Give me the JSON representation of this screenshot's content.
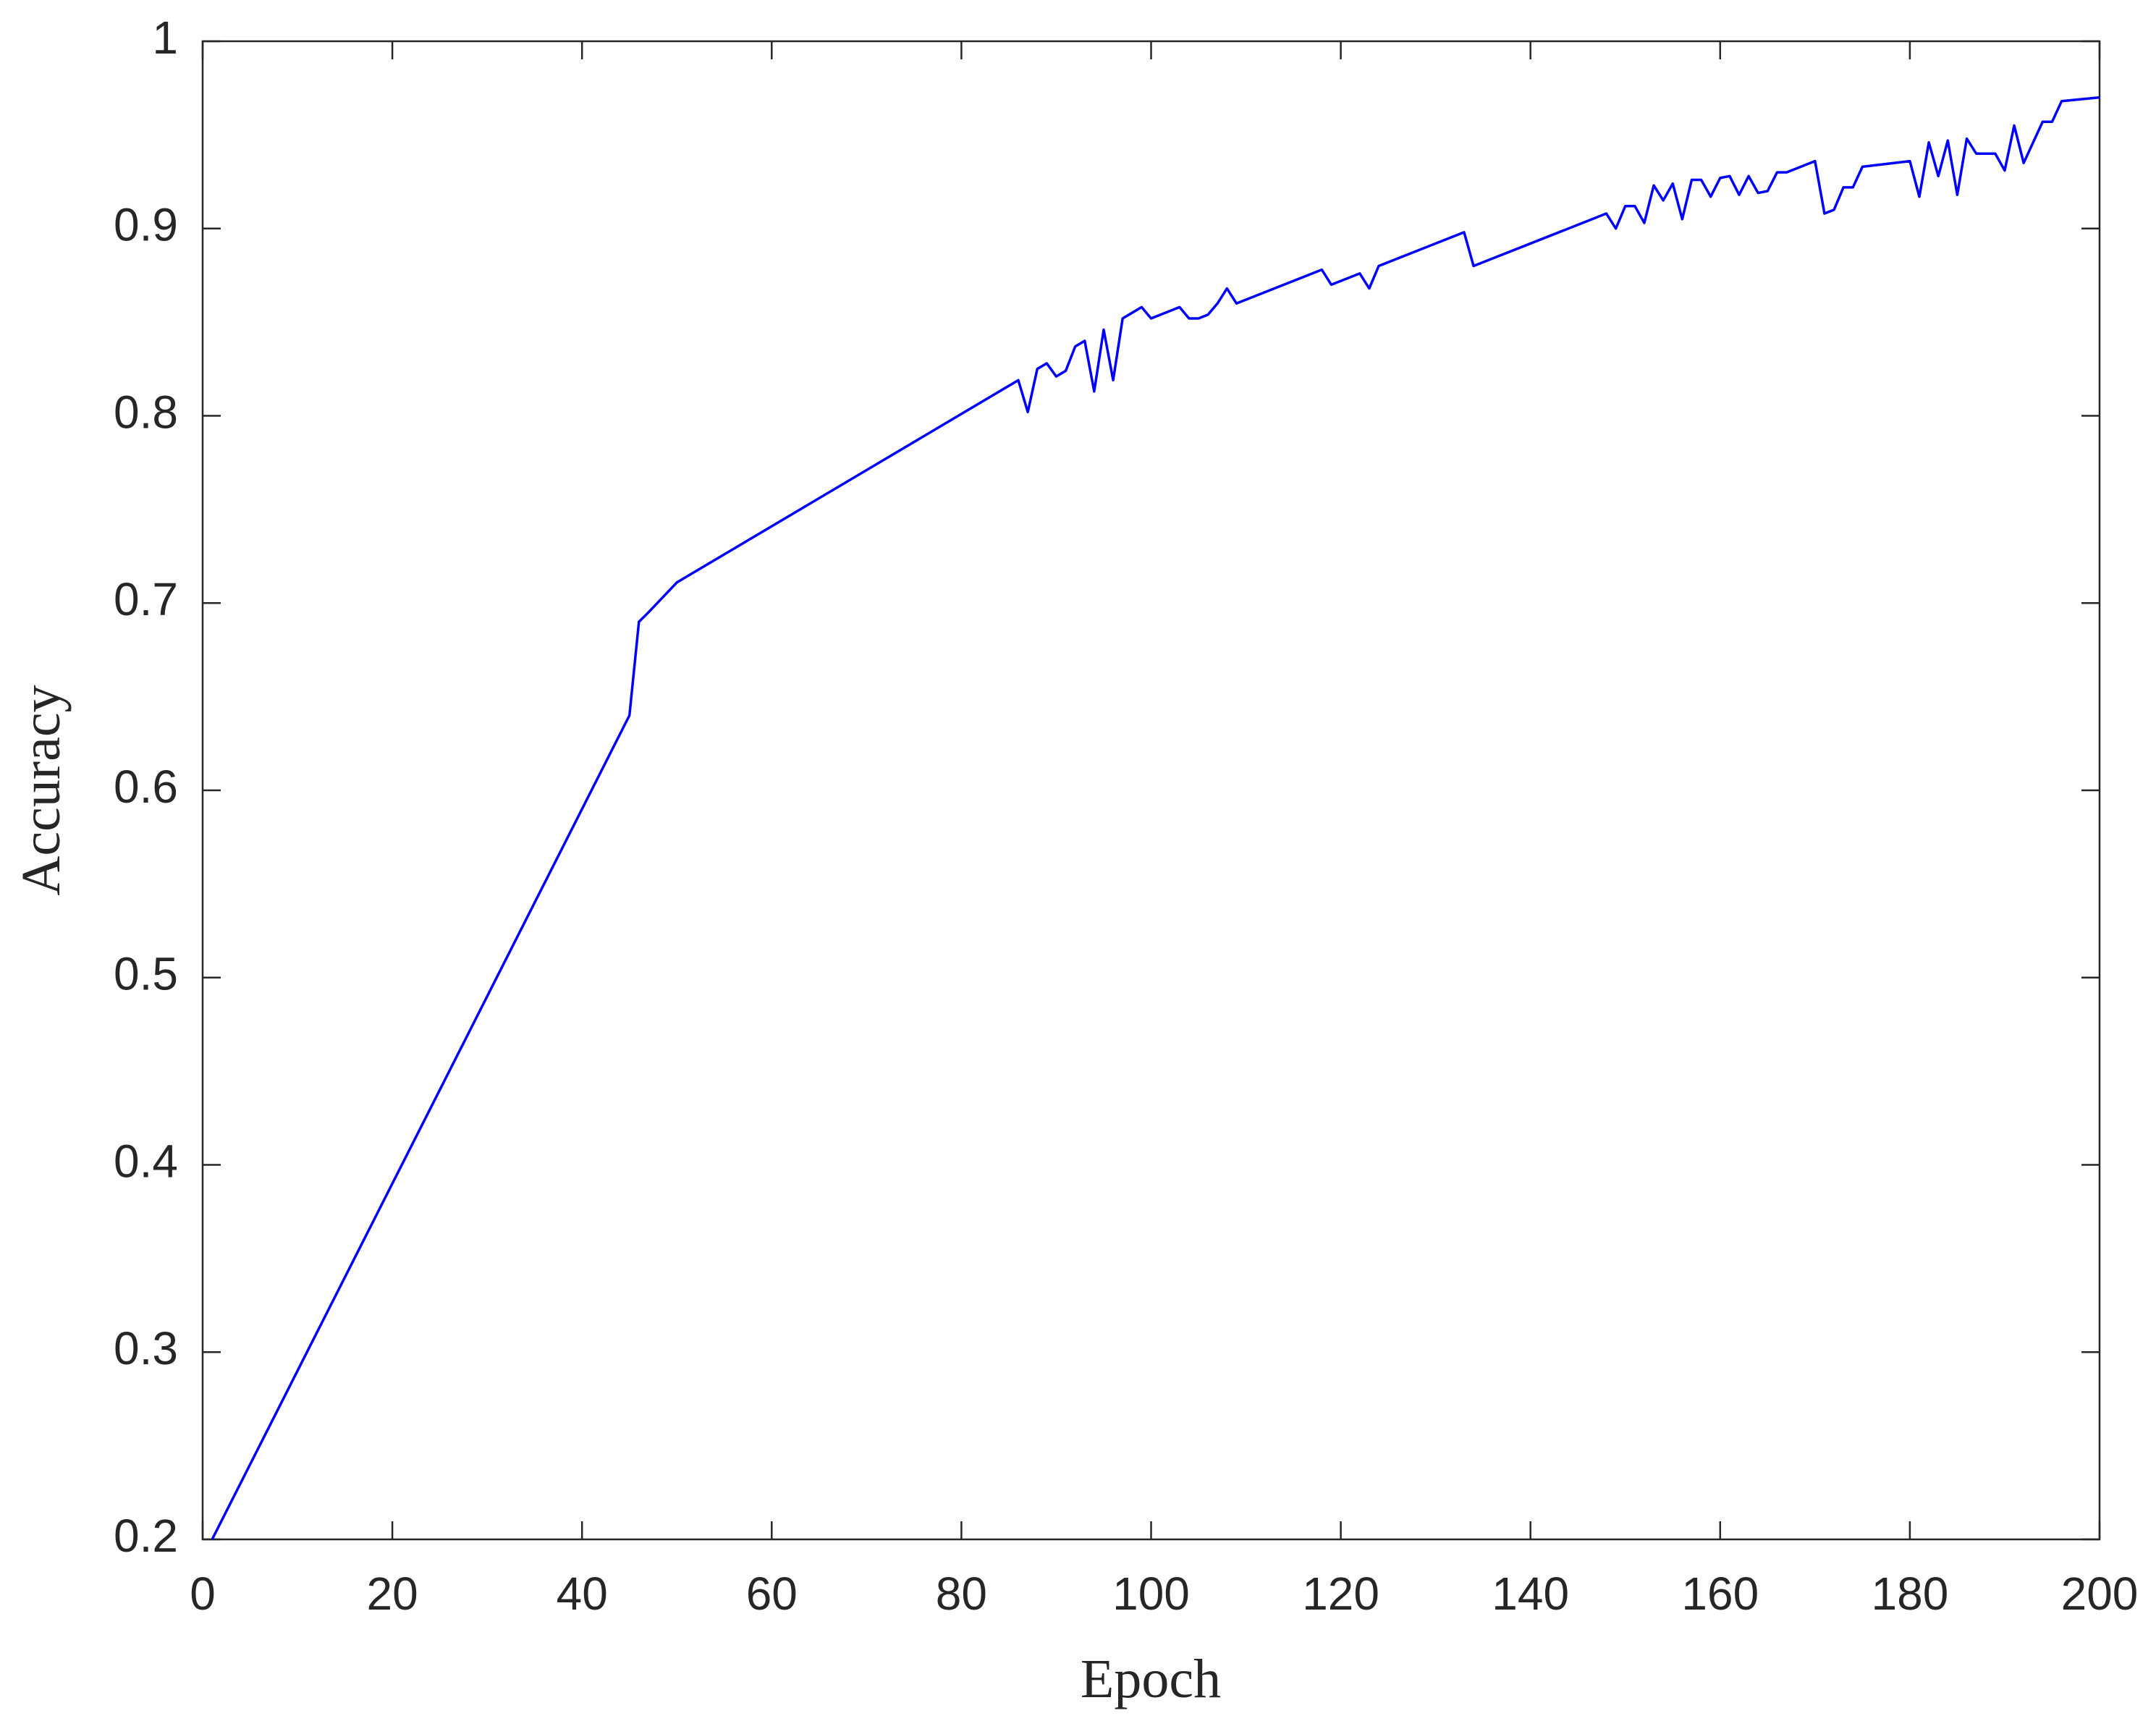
{
  "chart_data": {
    "type": "line",
    "x_label": "Epoch",
    "y_label": "Accuracy",
    "xlim": [
      0,
      200
    ],
    "ylim": [
      0.2,
      1
    ],
    "xticks": [
      0,
      20,
      40,
      60,
      80,
      100,
      120,
      140,
      160,
      180,
      200
    ],
    "yticks": [
      0.2,
      0.3,
      0.4,
      0.5,
      0.6,
      0.7,
      0.8,
      0.9,
      1
    ],
    "grid": false,
    "x": [
      1,
      45,
      46,
      47,
      50,
      86,
      87,
      88,
      89,
      90,
      91,
      92,
      93,
      94,
      95,
      96,
      97,
      98,
      99,
      100,
      103,
      104,
      105,
      106,
      107,
      108,
      109,
      118,
      119,
      122,
      123,
      124,
      133,
      134,
      148,
      149,
      150,
      151,
      152,
      153,
      154,
      155,
      156,
      157,
      158,
      159,
      160,
      161,
      162,
      163,
      164,
      165,
      166,
      167,
      168,
      170,
      171,
      172,
      173,
      174,
      175,
      180,
      181,
      182,
      183,
      184,
      185,
      186,
      187,
      189,
      190,
      191,
      192,
      194,
      195,
      196,
      200
    ],
    "series": [
      {
        "color": "#0000ff",
        "values": [
          0.2,
          0.64,
          0.69,
          0.695,
          0.711,
          0.819,
          0.802,
          0.825,
          0.828,
          0.821,
          0.824,
          0.837,
          0.84,
          0.813,
          0.846,
          0.819,
          0.852,
          0.855,
          0.858,
          0.852,
          0.858,
          0.852,
          0.852,
          0.854,
          0.86,
          0.868,
          0.86,
          0.878,
          0.87,
          0.876,
          0.868,
          0.88,
          0.898,
          0.88,
          0.908,
          0.9,
          0.912,
          0.912,
          0.903,
          0.923,
          0.915,
          0.924,
          0.905,
          0.926,
          0.926,
          0.917,
          0.927,
          0.928,
          0.918,
          0.928,
          0.919,
          0.92,
          0.93,
          0.93,
          0.932,
          0.936,
          0.908,
          0.91,
          0.922,
          0.922,
          0.933,
          0.936,
          0.917,
          0.946,
          0.928,
          0.947,
          0.918,
          0.948,
          0.94,
          0.94,
          0.931,
          0.955,
          0.935,
          0.957,
          0.957,
          0.968,
          0.97
        ]
      }
    ]
  }
}
